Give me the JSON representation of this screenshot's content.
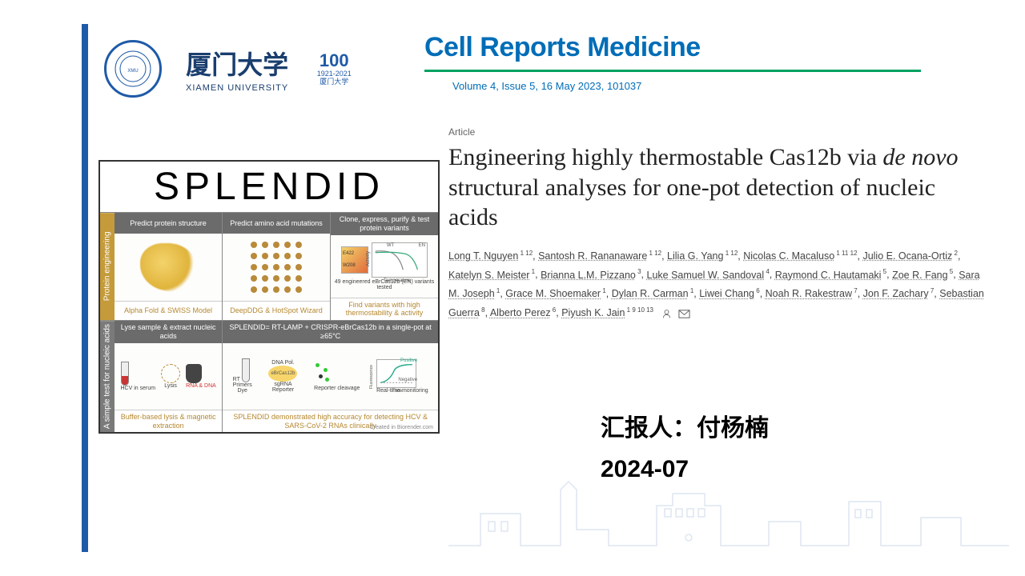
{
  "university": {
    "name_cn": "厦门大学",
    "name_en": "XIAMEN UNIVERSITY",
    "anniversary_top": "100",
    "anniversary_years": "1921-2021",
    "anniversary_sub": "厦门大学"
  },
  "journal": {
    "name": "Cell Reports Medicine",
    "issue": "Volume 4, Issue 5, 16 May 2023, 101037",
    "colors": {
      "brand": "#006db7",
      "divider": "#00a160"
    }
  },
  "article": {
    "label": "Article",
    "title_pre": "Engineering highly thermostable Cas12b via ",
    "title_italic": "de novo",
    "title_post": " structural analyses for one-pot detection of nucleic acids",
    "authors": [
      {
        "name": "Long T. Nguyen",
        "aff": "1 12"
      },
      {
        "name": "Santosh R. Rananaware",
        "aff": "1 12"
      },
      {
        "name": "Lilia G. Yang",
        "aff": "1 12"
      },
      {
        "name": "Nicolas C. Macaluso",
        "aff": "1 11 12"
      },
      {
        "name": "Julio E. Ocana-Ortiz",
        "aff": "2"
      },
      {
        "name": "Katelyn S. Meister",
        "aff": "1"
      },
      {
        "name": "Brianna L.M. Pizzano",
        "aff": "3"
      },
      {
        "name": "Luke Samuel W. Sandoval",
        "aff": "4"
      },
      {
        "name": "Raymond C. Hautamaki",
        "aff": "5"
      },
      {
        "name": "Zoe R. Fang",
        "aff": "5"
      },
      {
        "name": "Sara M. Joseph",
        "aff": "1"
      },
      {
        "name": "Grace M. Shoemaker",
        "aff": "1"
      },
      {
        "name": "Dylan R. Carman",
        "aff": "1"
      },
      {
        "name": "Liwei Chang",
        "aff": "6"
      },
      {
        "name": "Noah R. Rakestraw",
        "aff": "7"
      },
      {
        "name": "Jon F. Zachary",
        "aff": "7"
      },
      {
        "name": "Sebastian Guerra",
        "aff": "8"
      },
      {
        "name": "Alberto Perez",
        "aff": "6"
      },
      {
        "name": "Piyush K. Jain",
        "aff": "1 9 10 13"
      }
    ]
  },
  "presenter": {
    "line1": "汇报人：付杨楠",
    "line2": "2024-07"
  },
  "figure": {
    "title": "SPLENDID",
    "row1": {
      "side": "Protein engineering",
      "cells": [
        {
          "header": "Predict protein structure",
          "footer": "Alpha Fold & SWISS Model"
        },
        {
          "header": "Predict amino acid mutations",
          "footer": "DeepDDG & HotSpot Wizard"
        },
        {
          "header": "Clone, express, purify & test protein variants",
          "body_note": "49 engineered eBrCas12b (EN) variants tested",
          "chart_labels": {
            "e422": "E422",
            "w208": "W208",
            "wt": "WT",
            "en": "EN",
            "y": "Activity",
            "x": "Temperature"
          },
          "footer": "Find variants with high thermostability & activity"
        }
      ]
    },
    "row2": {
      "side": "A simple test for nucleic acids",
      "cells": [
        {
          "header": "Lyse sample & extract nucleic acids",
          "body_labels": {
            "lysis": "Lysis",
            "hcv": "HCV in serum",
            "rna": "RNA & DNA"
          },
          "footer": "Buffer-based lysis & magnetic extraction"
        },
        {
          "header": "SPLENDID= RT-LAMP + CRISPR-eBrCas12b in a single-pot at ≥65°C",
          "body_labels": {
            "rt": "RT",
            "dnapol": "DNA Pol.",
            "ebr": "eBrCas12b",
            "primers": "Primers",
            "dye": "Dye",
            "sgrna": "sgRNA",
            "reporter": "Reporter",
            "cleavage": "Reporter cleavage",
            "monitor": "Real-time monitoring",
            "fluor": "Fluorescence",
            "time": "Time",
            "pos": "Positive",
            "neg": "Negative"
          },
          "footer": "SPLENDID demonstrated high accuracy for detecting HCV & SARS-CoV-2 RNAs clinically"
        }
      ]
    },
    "attribution": "Created in Biorender.com"
  },
  "colors": {
    "blue_bar": "#1e5aa8",
    "side_gold": "#c49a3a",
    "side_gray": "#7a7a7a",
    "footer_text": "#b5872e",
    "skyline": "#9fb8d9"
  }
}
